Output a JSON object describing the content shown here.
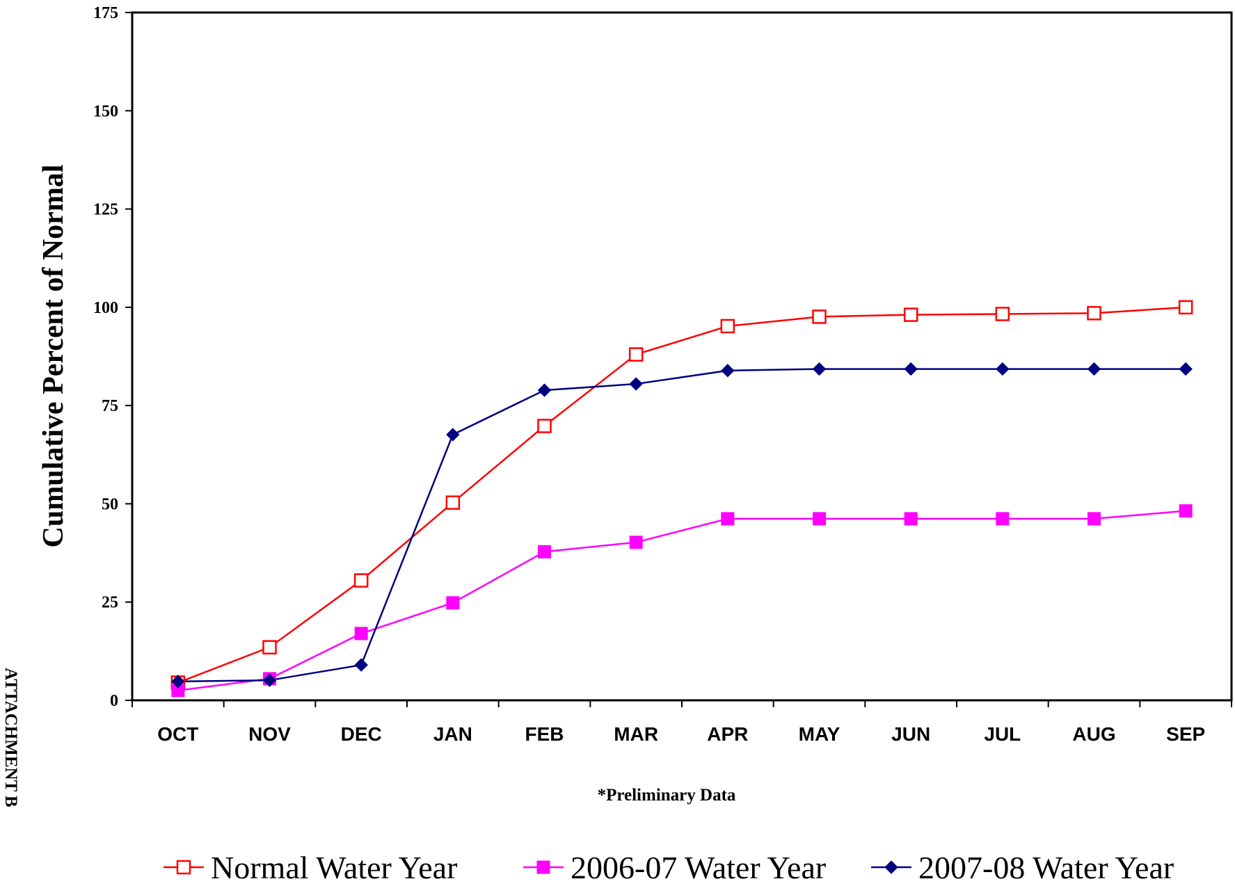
{
  "chart_data": {
    "type": "line",
    "title": "",
    "ylabel": "Cumulative Percent of Normal",
    "xlabel": "",
    "ylim": [
      0,
      175
    ],
    "yticks": [
      0,
      25,
      50,
      75,
      100,
      125,
      150,
      175
    ],
    "categories": [
      "OCT",
      "NOV",
      "DEC",
      "JAN",
      "FEB",
      "MAR",
      "APR",
      "MAY",
      "JUN",
      "JUL",
      "AUG",
      "SEP"
    ],
    "grid": false,
    "legend_position": "bottom",
    "series": [
      {
        "name": "Normal Water Year",
        "marker": "hollow-square",
        "color": "#ff0000",
        "values": [
          4.5,
          13.5,
          30.5,
          50.3,
          69.8,
          88,
          95.2,
          97.6,
          98.1,
          98.3,
          98.5,
          100
        ]
      },
      {
        "name": "2006-07 Water Year",
        "marker": "filled-square",
        "color": "#ff00ff",
        "values": [
          2.5,
          5.5,
          17,
          24.8,
          37.8,
          40.2,
          46.2,
          46.2,
          46.2,
          46.2,
          46.2,
          48.2
        ]
      },
      {
        "name": "2007-08 Water Year",
        "marker": "diamond",
        "color": "#000080",
        "values": [
          4.8,
          5.1,
          9,
          67.6,
          78.9,
          80.5,
          83.9,
          84.3,
          84.3,
          84.3,
          84.3,
          84.3
        ]
      }
    ],
    "annotation": "*Preliminary Data"
  },
  "side_label": "ATTACHMENT B"
}
